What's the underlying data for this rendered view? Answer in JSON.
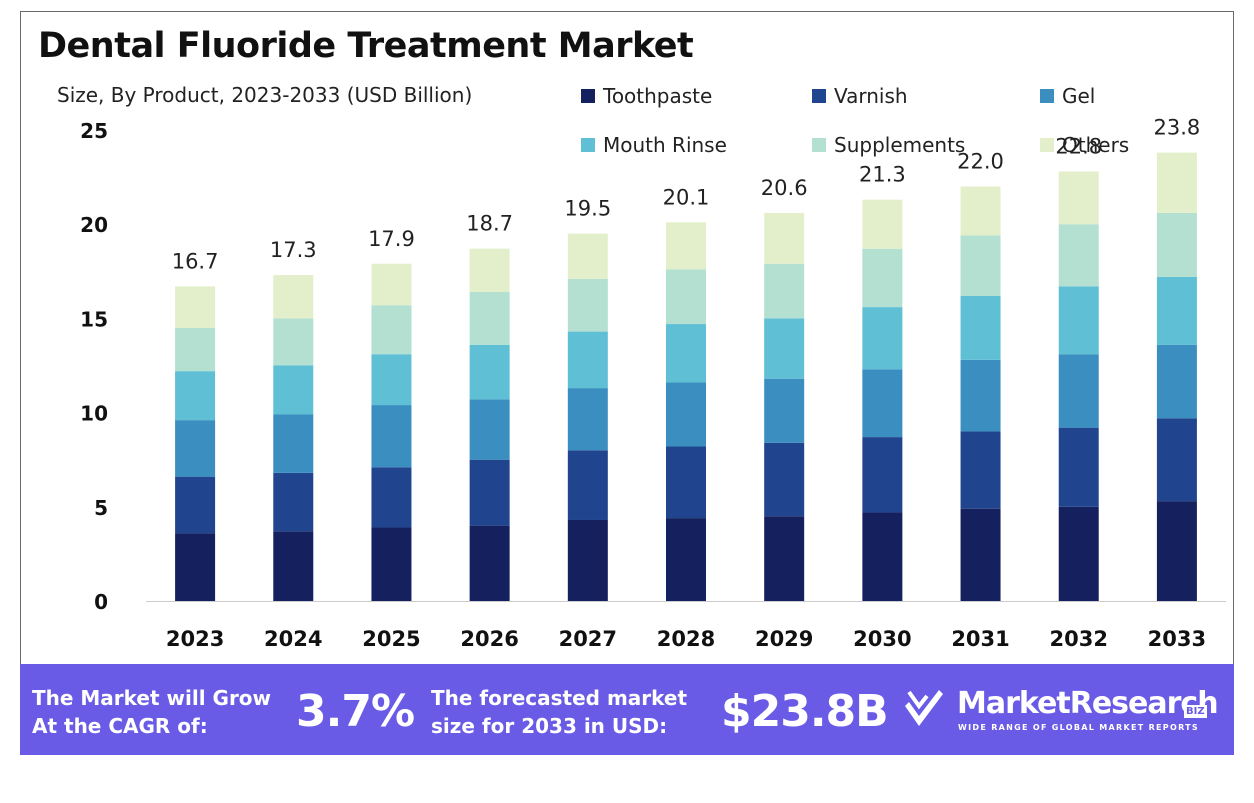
{
  "header": {
    "title": "Dental Fluoride Treatment Market",
    "subtitle": "Size, By Product, 2023-2033 (USD Billion)"
  },
  "legend": [
    {
      "label": "Toothpaste",
      "color": "#15205f"
    },
    {
      "label": "Varnish",
      "color": "#21448f"
    },
    {
      "label": "Gel",
      "color": "#3a8fc0"
    },
    {
      "label": "Mouth Rinse",
      "color": "#5fbfd5"
    },
    {
      "label": "Supplements",
      "color": "#b3e0d0"
    },
    {
      "label": "Others",
      "color": "#e3efca"
    }
  ],
  "chart_data": {
    "type": "bar",
    "stacked": true,
    "title": "Dental Fluoride Treatment Market",
    "subtitle": "Size, By Product, 2023-2033 (USD Billion)",
    "xlabel": "",
    "ylabel": "",
    "ylim": [
      0,
      25
    ],
    "yticks": [
      0,
      5,
      10,
      15,
      20,
      25
    ],
    "grid": false,
    "legend_position": "top-right",
    "categories": [
      "2023",
      "2024",
      "2025",
      "2026",
      "2027",
      "2028",
      "2029",
      "2030",
      "2031",
      "2032",
      "2033"
    ],
    "series": [
      {
        "name": "Toothpaste",
        "values": [
          3.6,
          3.7,
          3.9,
          4.0,
          4.3,
          4.4,
          4.5,
          4.7,
          4.9,
          5.0,
          5.3
        ]
      },
      {
        "name": "Varnish",
        "values": [
          3.0,
          3.1,
          3.2,
          3.5,
          3.7,
          3.8,
          3.9,
          4.0,
          4.1,
          4.2,
          4.4
        ]
      },
      {
        "name": "Gel",
        "values": [
          3.0,
          3.1,
          3.3,
          3.2,
          3.3,
          3.4,
          3.4,
          3.6,
          3.8,
          3.9,
          3.9
        ]
      },
      {
        "name": "Mouth Rinse",
        "values": [
          2.6,
          2.6,
          2.7,
          2.9,
          3.0,
          3.1,
          3.2,
          3.3,
          3.4,
          3.6,
          3.6
        ]
      },
      {
        "name": "Supplements",
        "values": [
          2.3,
          2.5,
          2.6,
          2.8,
          2.8,
          2.9,
          2.9,
          3.1,
          3.2,
          3.3,
          3.4
        ]
      },
      {
        "name": "Others",
        "values": [
          2.2,
          2.3,
          2.2,
          2.3,
          2.4,
          2.5,
          2.7,
          2.6,
          2.6,
          2.8,
          3.2
        ]
      }
    ],
    "totals": [
      "16.7",
      "17.3",
      "17.9",
      "18.7",
      "19.5",
      "20.1",
      "20.6",
      "21.3",
      "22.0",
      "22.8",
      "23.8"
    ]
  },
  "footer": {
    "cagr_text_line1": "The Market will Grow",
    "cagr_text_line2": "At the CAGR of:",
    "cagr_value": "3.7%",
    "forecast_text_line1": "The forecasted market",
    "forecast_text_line2": "size for 2033 in USD:",
    "forecast_value": "$23.8B",
    "brand_name": "MarketResearch",
    "brand_badge": "BIZ",
    "brand_tagline": "WIDE RANGE OF GLOBAL MARKET REPORTS"
  }
}
